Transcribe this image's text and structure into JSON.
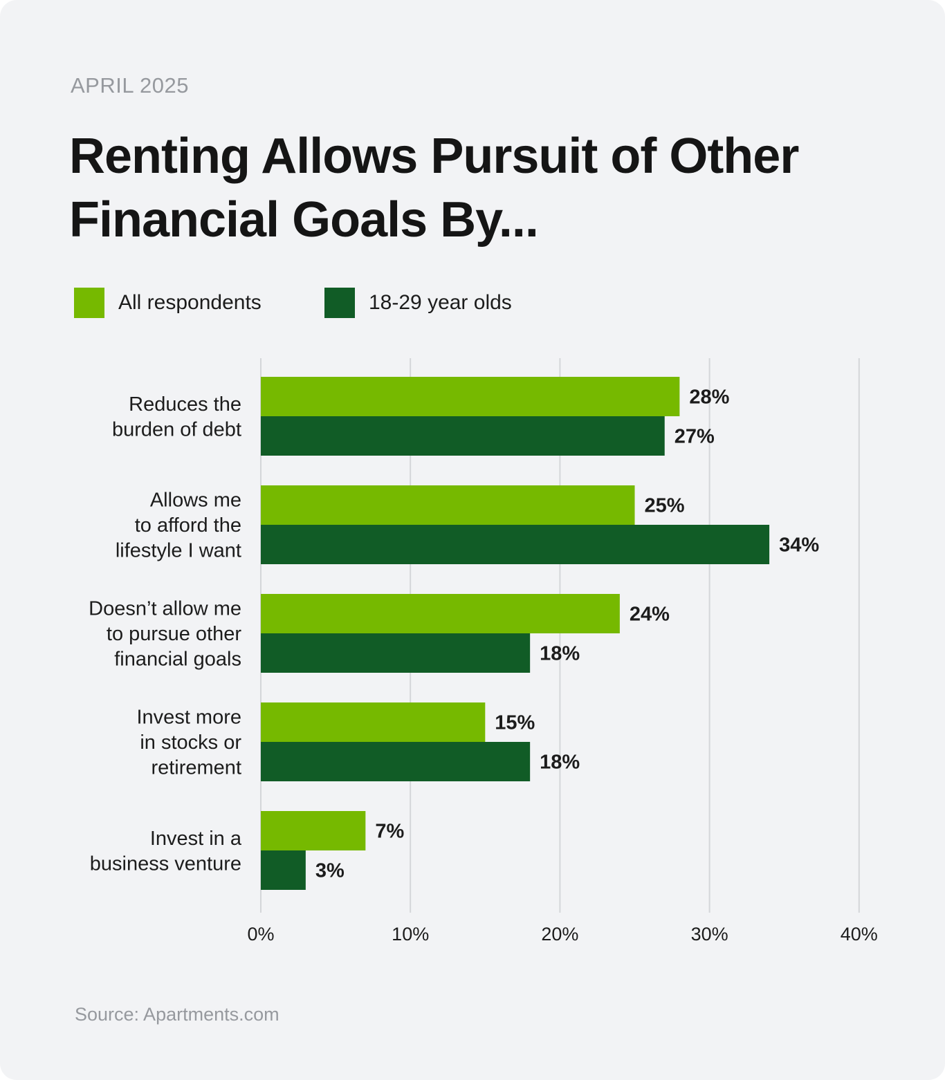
{
  "header": {
    "date": "APRIL 2025",
    "title": "Renting Allows Pursuit of Other Financial Goals By..."
  },
  "footer": {
    "source": "Source: Apartments.com"
  },
  "colors": {
    "all_respondents": "#76b900",
    "age_18_29": "#115c26",
    "gridline": "#d4d6d9",
    "background": "#f2f3f5"
  },
  "chart_data": {
    "type": "bar",
    "orientation": "horizontal",
    "title": "Renting Allows Pursuit of Other Financial Goals By...",
    "categories": [
      [
        "Reduces the",
        "burden of debt"
      ],
      [
        "Allows me",
        "to afford the",
        "lifestyle I want"
      ],
      [
        "Doesn’t allow me",
        "to pursue other",
        "financial goals"
      ],
      [
        "Invest more",
        "in stocks or",
        "retirement"
      ],
      [
        "Invest in a",
        "business venture"
      ]
    ],
    "series": [
      {
        "name": "All respondents",
        "values": [
          28,
          25,
          24,
          15,
          7
        ],
        "labels": [
          "28%",
          "25%",
          "24%",
          "15%",
          "7%"
        ]
      },
      {
        "name": "18-29 year olds",
        "values": [
          27,
          34,
          18,
          18,
          3
        ],
        "labels": [
          "27%",
          "34%",
          "18%",
          "18%",
          "3%"
        ]
      }
    ],
    "xlim": [
      0,
      40
    ],
    "xticks": [
      0,
      10,
      20,
      30,
      40
    ],
    "xtick_labels": [
      "0%",
      "10%",
      "20%",
      "30%",
      "40%"
    ],
    "grid": "vertical",
    "legend": "top-left"
  }
}
